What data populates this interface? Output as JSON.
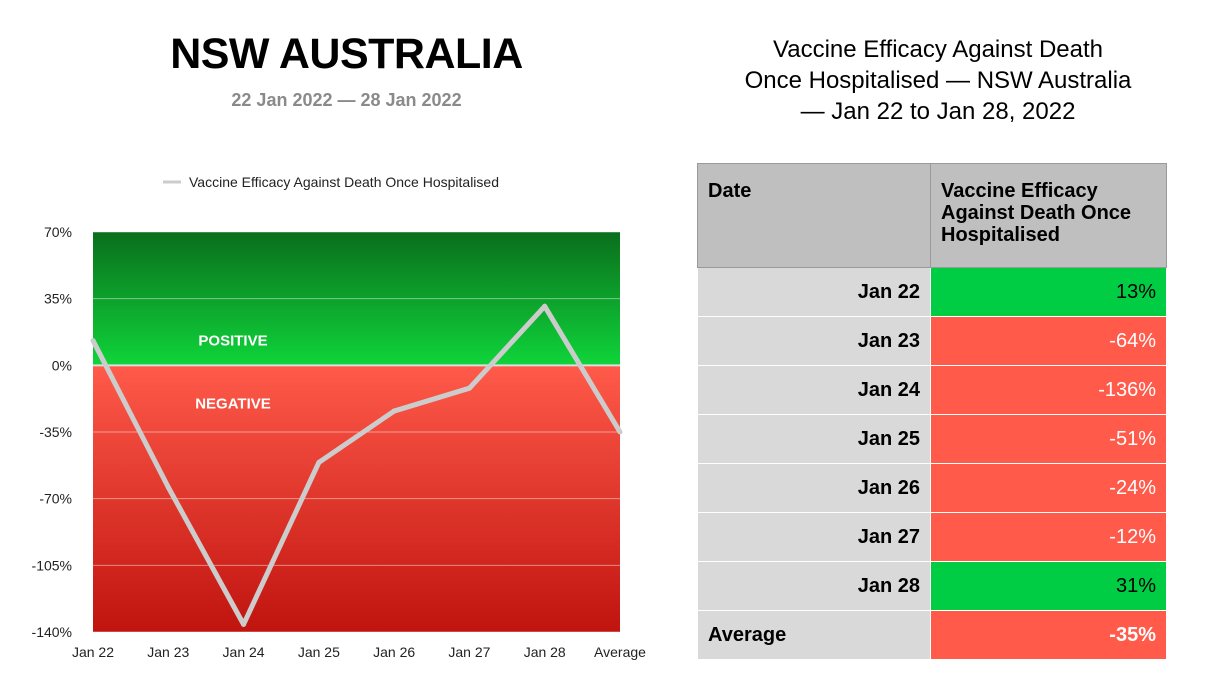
{
  "left_panel": {
    "title": "NSW AUSTRALIA",
    "subtitle": "22 Jan 2022 — 28 Jan 2022"
  },
  "chart_data": {
    "type": "line",
    "categories": [
      "Jan 22",
      "Jan 23",
      "Jan 24",
      "Jan 25",
      "Jan 26",
      "Jan 27",
      "Jan 28",
      "Average"
    ],
    "series": [
      {
        "name": "Vaccine Efficacy Against Death Once Hospitalised",
        "values": [
          13,
          -64,
          -136,
          -51,
          -24,
          -12,
          31,
          -35
        ],
        "color": "#cccccc"
      }
    ],
    "yticks": [
      70,
      35,
      0,
      -35,
      -70,
      -105,
      -140
    ],
    "ytick_labels": [
      "70%",
      "35%",
      "0%",
      "-35%",
      "-70%",
      "-105%",
      "-140%"
    ],
    "ylim": [
      -140,
      70
    ],
    "legend_position": "top",
    "region_labels": {
      "positive": "POSITIVE",
      "negative": "NEGATIVE"
    },
    "colors": {
      "positive_dark": "#0a6e1c",
      "positive_light": "#0fd43a",
      "negative_light": "#ff5a4a",
      "negative_dark": "#c0140f",
      "line": "#cccccc"
    }
  },
  "right_panel": {
    "title_lines": [
      "Vaccine Efficacy Against Death",
      "Once Hospitalised — NSW Australia",
      "— Jan 22 to Jan 28, 2022"
    ],
    "table": {
      "headers": [
        "Date",
        "Vaccine Efficacy Against Death Once Hospitalised"
      ],
      "rows": [
        {
          "date": "Jan 22",
          "value": "13%",
          "positive": true
        },
        {
          "date": "Jan 23",
          "value": "-64%",
          "positive": false
        },
        {
          "date": "Jan 24",
          "value": "-136%",
          "positive": false
        },
        {
          "date": "Jan 25",
          "value": "-51%",
          "positive": false
        },
        {
          "date": "Jan 26",
          "value": "-24%",
          "positive": false
        },
        {
          "date": "Jan 27",
          "value": "-12%",
          "positive": false
        },
        {
          "date": "Jan 28",
          "value": "31%",
          "positive": true
        }
      ],
      "average": {
        "label": "Average",
        "value": "-35%",
        "positive": false
      },
      "colors": {
        "positive_cell": "#00cc44",
        "negative_cell": "#ff5a4a"
      }
    }
  }
}
